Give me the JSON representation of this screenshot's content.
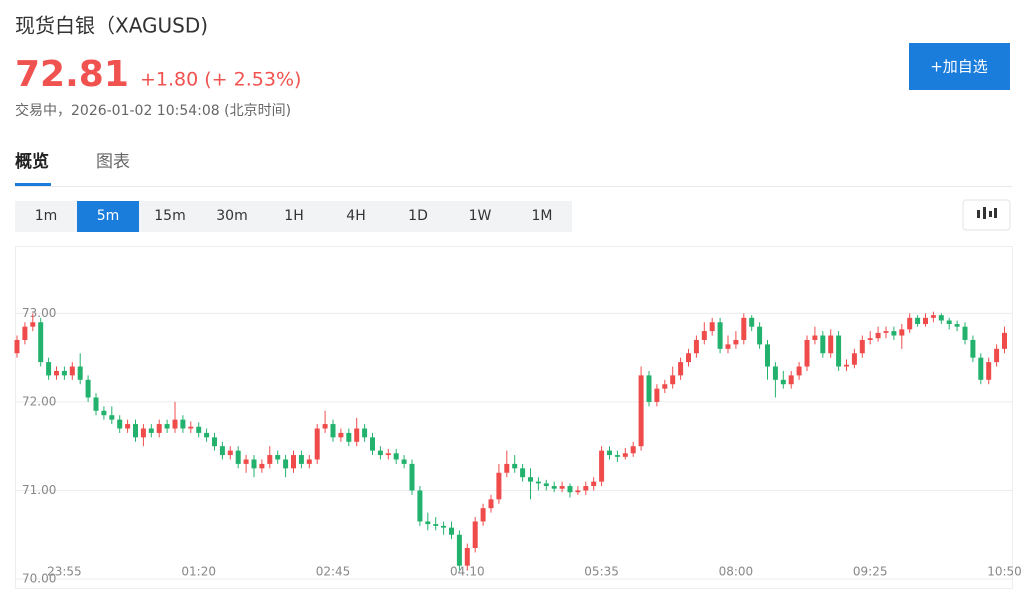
{
  "header": {
    "title": "现货白银（XAGUSD)",
    "price": "72.81",
    "change": "+1.80 (+ 2.53%)",
    "status": "交易中，2026-01-02 10:54:08 (北京时间)",
    "button": "+加自选"
  },
  "tabs": {
    "items": [
      "概览",
      "图表"
    ],
    "active": 0
  },
  "periods": {
    "items": [
      "1m",
      "5m",
      "15m",
      "30m",
      "1H",
      "4H",
      "1D",
      "1W",
      "1M"
    ],
    "active": 1
  },
  "chart_data": {
    "type": "candlestick",
    "up_color": "#f04b4b",
    "down_color": "#23b26d",
    "grid": true,
    "ylim": [
      70.0,
      73.75
    ],
    "yticks": [
      {
        "value": 70,
        "label": "70.00"
      },
      {
        "value": 71,
        "label": "71.00"
      },
      {
        "value": 72,
        "label": "72.00"
      },
      {
        "value": 73,
        "label": "73.00"
      }
    ],
    "categories": [
      null,
      null,
      null,
      null,
      null,
      null,
      "23:55",
      null,
      null,
      null,
      null,
      null,
      null,
      null,
      null,
      null,
      null,
      null,
      null,
      null,
      null,
      null,
      null,
      "01:20",
      null,
      null,
      null,
      null,
      null,
      null,
      null,
      null,
      null,
      null,
      null,
      null,
      null,
      null,
      null,
      null,
      "02:45",
      null,
      null,
      null,
      null,
      null,
      null,
      null,
      null,
      null,
      null,
      null,
      null,
      null,
      null,
      null,
      null,
      "04:10",
      null,
      null,
      null,
      null,
      null,
      null,
      null,
      null,
      null,
      null,
      null,
      null,
      null,
      null,
      null,
      null,
      "05:35",
      null,
      null,
      null,
      null,
      null,
      null,
      null,
      null,
      null,
      null,
      null,
      null,
      null,
      null,
      null,
      null,
      "08:00",
      null,
      null,
      null,
      null,
      null,
      null,
      null,
      null,
      null,
      null,
      null,
      null,
      null,
      null,
      null,
      null,
      "09:25",
      null,
      null,
      null,
      null,
      null,
      null,
      null,
      null,
      null,
      null,
      null,
      null,
      null,
      null,
      null,
      null,
      "10:50"
    ],
    "open": [
      72.55,
      72.7,
      72.85,
      72.9,
      72.45,
      72.3,
      72.35,
      72.3,
      72.4,
      72.25,
      72.05,
      71.9,
      71.85,
      71.8,
      71.7,
      71.75,
      71.6,
      71.7,
      71.65,
      71.75,
      71.7,
      71.8,
      71.7,
      71.72,
      71.65,
      71.6,
      71.5,
      71.4,
      71.45,
      71.3,
      71.35,
      71.25,
      71.3,
      71.4,
      71.35,
      71.25,
      71.4,
      71.3,
      71.35,
      71.7,
      71.75,
      71.6,
      71.65,
      71.55,
      71.7,
      71.6,
      71.45,
      71.4,
      71.42,
      71.35,
      71.3,
      71.0,
      70.65,
      70.62,
      70.6,
      70.58,
      70.5,
      70.15,
      70.35,
      70.65,
      70.8,
      70.9,
      71.2,
      71.3,
      71.25,
      71.15,
      71.1,
      71.08,
      71.05,
      71.02,
      71.05,
      70.98,
      71.0,
      71.05,
      71.1,
      71.45,
      71.4,
      71.38,
      71.42,
      71.5,
      72.3,
      72.0,
      72.15,
      72.2,
      72.3,
      72.45,
      72.55,
      72.7,
      72.8,
      72.9,
      72.6,
      72.65,
      72.7,
      72.95,
      72.85,
      72.65,
      72.4,
      72.25,
      72.2,
      72.3,
      72.4,
      72.7,
      72.75,
      72.55,
      72.75,
      72.4,
      72.42,
      72.55,
      72.7,
      72.72,
      72.78,
      72.8,
      72.75,
      72.82,
      72.95,
      72.88,
      72.95,
      72.98,
      72.92,
      72.88,
      72.85,
      72.7,
      72.5,
      72.25,
      72.45,
      72.6
    ],
    "high": [
      72.75,
      72.9,
      73.0,
      72.95,
      72.5,
      72.4,
      72.4,
      72.45,
      72.55,
      72.3,
      72.1,
      71.95,
      71.95,
      71.85,
      71.8,
      71.8,
      71.75,
      71.75,
      71.8,
      71.8,
      72.0,
      71.85,
      71.78,
      71.77,
      71.7,
      71.65,
      71.55,
      71.5,
      71.5,
      71.4,
      71.4,
      71.35,
      71.5,
      71.45,
      71.4,
      71.45,
      71.45,
      71.4,
      71.75,
      71.9,
      71.8,
      71.7,
      71.7,
      71.82,
      71.75,
      71.65,
      71.5,
      71.47,
      71.47,
      71.4,
      71.35,
      71.05,
      70.75,
      70.7,
      70.65,
      70.65,
      70.55,
      70.4,
      70.7,
      70.85,
      70.95,
      71.3,
      71.45,
      71.4,
      71.3,
      71.25,
      71.15,
      71.12,
      71.1,
      71.1,
      71.08,
      71.05,
      71.1,
      71.15,
      71.5,
      71.5,
      71.45,
      71.48,
      71.55,
      72.4,
      72.35,
      72.2,
      72.25,
      72.4,
      72.5,
      72.6,
      72.75,
      72.9,
      72.95,
      72.95,
      72.75,
      72.8,
      73.0,
      72.98,
      72.9,
      72.7,
      72.45,
      72.35,
      72.35,
      72.45,
      72.75,
      72.85,
      72.8,
      72.82,
      72.8,
      72.48,
      72.6,
      72.75,
      72.8,
      72.85,
      72.85,
      72.85,
      72.88,
      73.0,
      72.98,
      73.0,
      73.02,
      73.0,
      72.95,
      72.92,
      72.9,
      72.75,
      72.55,
      72.5,
      72.65,
      72.85
    ],
    "low": [
      72.5,
      72.65,
      72.8,
      72.4,
      72.25,
      72.25,
      72.25,
      72.25,
      72.2,
      72.0,
      71.85,
      71.8,
      71.75,
      71.65,
      71.65,
      71.55,
      71.5,
      71.6,
      71.6,
      71.65,
      71.65,
      71.65,
      71.65,
      71.6,
      71.55,
      71.45,
      71.35,
      71.35,
      71.25,
      71.2,
      71.15,
      71.2,
      71.25,
      71.3,
      71.15,
      71.2,
      71.25,
      71.25,
      71.3,
      71.65,
      71.55,
      71.55,
      71.5,
      71.5,
      71.55,
      71.4,
      71.35,
      71.35,
      71.3,
      71.25,
      70.95,
      70.6,
      70.55,
      70.55,
      70.5,
      70.45,
      70.1,
      70.1,
      70.3,
      70.6,
      70.75,
      70.85,
      71.15,
      71.2,
      71.1,
      70.9,
      71.0,
      71.0,
      70.98,
      70.98,
      70.92,
      70.95,
      70.95,
      71.0,
      71.05,
      71.35,
      71.32,
      71.35,
      71.38,
      71.45,
      71.95,
      71.95,
      72.1,
      72.15,
      72.25,
      72.4,
      72.5,
      72.65,
      72.75,
      72.55,
      72.55,
      72.6,
      72.65,
      72.8,
      72.6,
      72.25,
      72.05,
      72.15,
      72.15,
      72.25,
      72.35,
      72.65,
      72.5,
      72.5,
      72.35,
      72.35,
      72.38,
      72.5,
      72.65,
      72.68,
      72.72,
      72.7,
      72.6,
      72.78,
      72.85,
      72.85,
      72.9,
      72.88,
      72.82,
      72.8,
      72.65,
      72.45,
      72.2,
      72.2,
      72.4,
      72.55
    ],
    "close": [
      72.7,
      72.85,
      72.9,
      72.45,
      72.3,
      72.35,
      72.3,
      72.4,
      72.25,
      72.05,
      71.9,
      71.85,
      71.8,
      71.7,
      71.75,
      71.6,
      71.7,
      71.65,
      71.75,
      71.7,
      71.8,
      71.7,
      71.72,
      71.65,
      71.6,
      71.5,
      71.4,
      71.45,
      71.3,
      71.35,
      71.25,
      71.3,
      71.4,
      71.35,
      71.25,
      71.4,
      71.3,
      71.35,
      71.7,
      71.75,
      71.6,
      71.65,
      71.55,
      71.7,
      71.6,
      71.45,
      71.4,
      71.42,
      71.35,
      71.3,
      71.0,
      70.65,
      70.62,
      70.6,
      70.58,
      70.5,
      70.15,
      70.35,
      70.65,
      70.8,
      70.9,
      71.2,
      71.3,
      71.25,
      71.15,
      71.1,
      71.08,
      71.05,
      71.02,
      71.05,
      70.98,
      71.0,
      71.05,
      71.1,
      71.45,
      71.4,
      71.38,
      71.42,
      71.5,
      72.3,
      72.0,
      72.15,
      72.2,
      72.3,
      72.45,
      72.55,
      72.7,
      72.8,
      72.9,
      72.6,
      72.65,
      72.7,
      72.95,
      72.85,
      72.65,
      72.4,
      72.25,
      72.2,
      72.3,
      72.4,
      72.7,
      72.75,
      72.55,
      72.75,
      72.4,
      72.42,
      72.55,
      72.7,
      72.72,
      72.78,
      72.8,
      72.75,
      72.82,
      72.95,
      72.88,
      72.95,
      72.98,
      72.92,
      72.88,
      72.85,
      72.7,
      72.5,
      72.25,
      72.45,
      72.6,
      72.78
    ]
  }
}
